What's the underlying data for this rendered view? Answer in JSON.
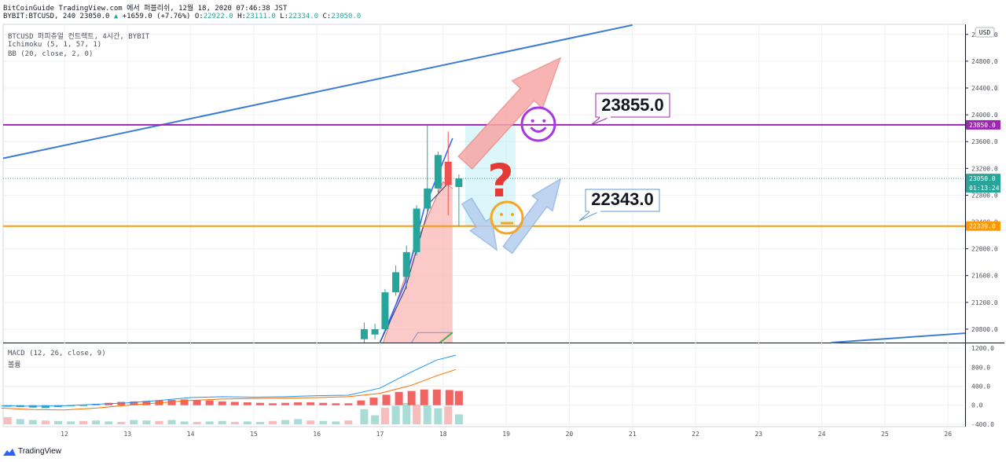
{
  "header": {
    "line1": "BitCoinGuide TradingView.com 에서 퍼블리쉬, 12월 18, 2020 07:46:38 JST",
    "symbol": "BYBIT:BTCUSD, 240 23050.0",
    "change": "+1659.0 (+7.76%)",
    "o_label": "O:",
    "o_value": "22922.0",
    "h_label": "H:",
    "h_value": "23111.0",
    "l_label": "L:",
    "l_value": "22334.0",
    "c_label": "C:",
    "c_value": "23050.0"
  },
  "legend": {
    "title": "BTCUSD 퍼피츄얼 컨트랙트, 4시간, BYBIT",
    "ichimoku": "Ichimoku (5, 1, 57, 1)",
    "bb": "BB (20, close, 2, 0)",
    "macd": "MACD (12, 26, close, 9)",
    "macd_sub": "볼륨"
  },
  "branding": {
    "logo_text": "TradingView"
  },
  "chart_data": [
    {
      "type": "candlestick",
      "currency_label": "USD",
      "ylim": [
        20600,
        25350
      ],
      "yticks": [
        "25200.0",
        "24800.0",
        "24400.0",
        "24000.0",
        "23600.0",
        "23200.0",
        "22800.0",
        "22400.0",
        "22000.0",
        "21600.0",
        "21200.0",
        "20800.0"
      ],
      "xticks": [
        "12",
        "13",
        "14",
        "15",
        "16",
        "17",
        "18",
        "19",
        "20",
        "21",
        "22",
        "23",
        "24",
        "25",
        "26"
      ],
      "xlim": [
        11.0,
        26.5
      ],
      "candles": [
        {
          "x": 16.75,
          "o": 20650,
          "h": 20900,
          "l": 20600,
          "c": 20800
        },
        {
          "x": 16.92,
          "o": 20720,
          "h": 20880,
          "l": 20650,
          "c": 20800
        },
        {
          "x": 17.08,
          "o": 20800,
          "h": 21400,
          "l": 20750,
          "c": 21350
        },
        {
          "x": 17.25,
          "o": 21350,
          "h": 21750,
          "l": 21300,
          "c": 21650
        },
        {
          "x": 17.42,
          "o": 21580,
          "h": 22050,
          "l": 21400,
          "c": 21950
        },
        {
          "x": 17.58,
          "o": 21950,
          "h": 22650,
          "l": 21900,
          "c": 22600
        },
        {
          "x": 17.75,
          "o": 22600,
          "h": 23850,
          "l": 22550,
          "c": 22900
        },
        {
          "x": 17.92,
          "o": 22900,
          "h": 23450,
          "l": 22800,
          "c": 23400
        },
        {
          "x": 18.08,
          "o": 23300,
          "h": 23750,
          "l": 22500,
          "c": 22950
        },
        {
          "x": 18.25,
          "o": 22922,
          "h": 23111,
          "l": 22334,
          "c": 23050
        }
      ],
      "horizontal_lines": [
        {
          "value": 23850,
          "label": "23850.0",
          "color": "#9c27b0"
        },
        {
          "value": 22339,
          "label": "22339.0",
          "color": "#ff9800"
        }
      ],
      "price_tags": [
        {
          "value": 23050,
          "label": "23050.0",
          "countdown": "01:13:24",
          "color": "#26a69a"
        }
      ],
      "annotations": [
        {
          "text": "23855.0",
          "color": "#9c27b0"
        },
        {
          "text": "22343.0",
          "color": "#5b9bd5"
        }
      ],
      "trendlines_color": "#3a7bd5",
      "colors": {
        "up": "#26a69a",
        "down": "#ef5350",
        "cloud": "#f8b7b5",
        "box": "#b2ebf2"
      }
    },
    {
      "type": "bar",
      "name": "MACD",
      "ylim": [
        -450,
        1300
      ],
      "yticks": [
        "1200.0",
        "800.0",
        "400.0",
        "0.0",
        "-400.0"
      ],
      "macd_line": [
        [
          11.0,
          -10
        ],
        [
          11.5,
          -20
        ],
        [
          12.0,
          -10
        ],
        [
          12.5,
          20
        ],
        [
          13.0,
          50
        ],
        [
          13.5,
          100
        ],
        [
          14.0,
          160
        ],
        [
          14.5,
          180
        ],
        [
          15.0,
          170
        ],
        [
          15.5,
          180
        ],
        [
          16.0,
          200
        ],
        [
          16.5,
          210
        ],
        [
          17.0,
          360
        ],
        [
          17.5,
          700
        ],
        [
          17.9,
          950
        ],
        [
          18.2,
          1050
        ]
      ],
      "signal_line": [
        [
          11.0,
          -60
        ],
        [
          11.5,
          -90
        ],
        [
          12.0,
          -100
        ],
        [
          12.5,
          -60
        ],
        [
          13.0,
          0
        ],
        [
          13.5,
          50
        ],
        [
          14.0,
          100
        ],
        [
          14.5,
          130
        ],
        [
          15.0,
          140
        ],
        [
          15.5,
          150
        ],
        [
          16.0,
          160
        ],
        [
          16.5,
          180
        ],
        [
          17.0,
          250
        ],
        [
          17.5,
          420
        ],
        [
          17.9,
          620
        ],
        [
          18.2,
          750
        ]
      ],
      "histogram": [
        [
          11.1,
          -30
        ],
        [
          11.3,
          -40
        ],
        [
          11.5,
          -50
        ],
        [
          11.7,
          -60
        ],
        [
          11.9,
          -40
        ],
        [
          12.1,
          -20
        ],
        [
          12.3,
          -10
        ],
        [
          12.5,
          30
        ],
        [
          12.7,
          50
        ],
        [
          12.9,
          70
        ],
        [
          13.1,
          80
        ],
        [
          13.3,
          90
        ],
        [
          13.5,
          100
        ],
        [
          13.7,
          110
        ],
        [
          13.9,
          120
        ],
        [
          14.1,
          110
        ],
        [
          14.3,
          100
        ],
        [
          14.5,
          80
        ],
        [
          14.7,
          70
        ],
        [
          14.9,
          60
        ],
        [
          15.1,
          50
        ],
        [
          15.3,
          40
        ],
        [
          15.5,
          50
        ],
        [
          15.7,
          60
        ],
        [
          15.9,
          60
        ],
        [
          16.1,
          50
        ],
        [
          16.3,
          40
        ],
        [
          16.5,
          40
        ],
        [
          16.7,
          100
        ],
        [
          16.9,
          160
        ],
        [
          17.1,
          220
        ],
        [
          17.3,
          280
        ],
        [
          17.5,
          300
        ],
        [
          17.7,
          330
        ],
        [
          17.9,
          330
        ],
        [
          18.1,
          320
        ],
        [
          18.25,
          300
        ]
      ],
      "volume": [
        [
          11.1,
          150
        ],
        [
          11.3,
          110
        ],
        [
          11.5,
          90
        ],
        [
          11.7,
          80
        ],
        [
          11.9,
          70
        ],
        [
          12.1,
          60
        ],
        [
          12.3,
          70
        ],
        [
          12.5,
          80
        ],
        [
          12.7,
          60
        ],
        [
          12.9,
          50
        ],
        [
          13.1,
          90
        ],
        [
          13.3,
          80
        ],
        [
          13.5,
          70
        ],
        [
          13.7,
          90
        ],
        [
          13.9,
          60
        ],
        [
          14.1,
          50
        ],
        [
          14.3,
          60
        ],
        [
          14.5,
          70
        ],
        [
          14.7,
          50
        ],
        [
          14.9,
          60
        ],
        [
          15.1,
          50
        ],
        [
          15.3,
          70
        ],
        [
          15.5,
          90
        ],
        [
          15.7,
          110
        ],
        [
          15.9,
          80
        ],
        [
          16.1,
          70
        ],
        [
          16.3,
          60
        ],
        [
          16.5,
          80
        ],
        [
          16.75,
          320
        ],
        [
          16.92,
          190
        ],
        [
          17.08,
          350
        ],
        [
          17.25,
          390
        ],
        [
          17.42,
          450
        ],
        [
          17.58,
          420
        ],
        [
          17.75,
          400
        ],
        [
          17.92,
          340
        ],
        [
          18.08,
          380
        ],
        [
          18.25,
          210
        ]
      ]
    }
  ]
}
